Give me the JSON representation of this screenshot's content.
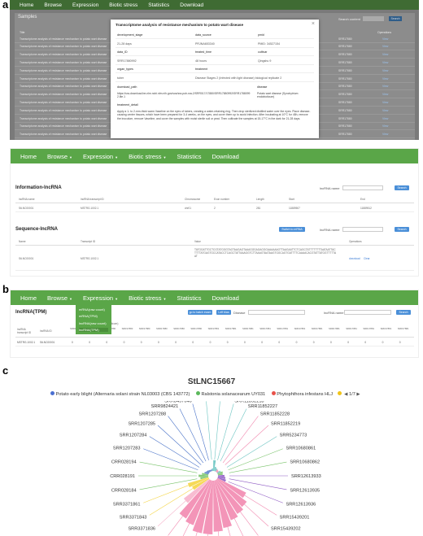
{
  "labels": {
    "a": "a",
    "b": "b",
    "c": "c"
  },
  "nav": {
    "home": "Home",
    "browse": "Browse",
    "expression": "Expression",
    "biotic": "Biotic stress",
    "statistics": "Statistics",
    "download": "Download"
  },
  "panelA": {
    "section": "Samples",
    "search_label": "Search content",
    "search_btn": "Search",
    "col_title": "Title",
    "col_operation": "Operations",
    "modal": {
      "title": "Transcriptome analysis of resistance mechanism to potato wart disease",
      "close": "×",
      "rows": [
        [
          "development_stage",
          "data_source",
          "pmid"
        ],
        [
          "21-28 days",
          "PRJNA653340",
          "PMID: 34527154"
        ],
        [
          "data_ID",
          "treated_time",
          "cultivar"
        ],
        [
          "SRR17880992",
          "48 hours",
          "Qingshu 9"
        ],
        [
          "organ_types",
          "treatment",
          ""
        ],
        [
          "tuber",
          "Disease Stages 2 (Infected with light disease) biological replicate 2",
          ""
        ]
      ],
      "download_label": "download_path",
      "disease_label": "disease",
      "download_val": "https://sra-download.be-nlm.ncbi.nlm.nih.gov/sos/sra-pub-sra-2/SRR017/17880/SRR17880992/SRR17880992.lite.1",
      "disease_val": "Potato wart disease (Synchytrium endobioticum)",
      "detail_label": "treatment_detail",
      "detail_val": "Apply a 1- to 2-mm-thick warm Vaseline on the eyes of tubers, creating a water-retaining ring. Then drop sterilized distilled water over the eyes. Place disease-causing center tissues, which have been prepared for 3-4 weeks, on the eyes, and cover them up to avoid infection. After incubating at 10°C for 48h, remove the inoculum, remove Vaseline, and cover the samples with moist sterile soil or peat. Then cultivate the samples at 15-17°C in the dark for 21-28 days."
    },
    "row_prefix": "Transcriptome analysis of resistance mechanism to potato wart disease",
    "sra_prefix": "SRR17880",
    "view": "View"
  },
  "panelA2": {
    "info_title": "Information-lncRNA",
    "name_label": "lncRNA name",
    "search": "Search",
    "headers": [
      "lncRNA name",
      "lncRNA transcript ID",
      "Chromosome",
      "Exon number",
      "Length",
      "Start",
      "End"
    ],
    "values": [
      "StLNC00001",
      "MSTRG.1002.1",
      "chr01",
      "2",
      "281",
      "11889507",
      "11889512"
    ],
    "seq_title": "Sequence-lncRNA",
    "switch": "Switch to mRNA",
    "seq_headers": [
      "Name",
      "Transcript ID",
      "Value",
      "Operations"
    ],
    "seq_values": [
      "StLNC00001",
      "MSTRG.1002.1",
      "TATGGATTGCTCGTATGGGTAGTAAGAGTAAAGGGAGAGGGAAAAAAGTTAAGAATTCTCAGCTATTTTTTTTAATAATTACTTTTATGAGTGCCATACCTCAGCTATTAAAGGTCTTAAAGTAATAAGTGGCAGTGATTTTCAAAACACGTATTATGGTTTTTAAT"
    ],
    "download": "download",
    "clear": "Clear"
  },
  "panelB": {
    "title": "lncRNA(TPM)",
    "btn1": "go to batch exam",
    "btn2": "Left bias",
    "disease": "Disease",
    "lncname": "lncRNA name",
    "search": "Search",
    "menu": [
      "mRNA(raw count)",
      "mRNA(TPM)",
      "lncRNA(raw count)",
      "lncRNA(TPM)"
    ],
    "col0": "lncRNA transcript ID",
    "col1": "lncRNA ID",
    "group": "disease (Synchytrium endobioticum)",
    "cols": [
      "SRR17880",
      "SRR17880",
      "SRR17880",
      "SRR17880",
      "SRR17880",
      "SRR17880",
      "SRR17880",
      "SRR17880",
      "SRR17881",
      "SRR17881",
      "SRR17881",
      "SRR17881",
      "SRR17881",
      "SRR17881",
      "SRR17881",
      "SRR17881",
      "SRR17881",
      "SRR17881",
      "SRR17881",
      "SRR17881"
    ],
    "row": [
      "MSTRG.1002.1",
      "StLNC00001",
      "0",
      "0",
      "0",
      "0",
      "0",
      "0",
      "0",
      "0",
      "0",
      "0",
      "0",
      "0",
      "0",
      "0",
      "0",
      "0",
      "0",
      "0",
      "0",
      "0"
    ]
  },
  "panelC": {
    "title": "StLNC15667",
    "legend": [
      {
        "name": "Potato early blight (Alternaria solani strain NL03003 (CBS 143772)",
        "color": "#4a6fd1"
      },
      {
        "name": "Ralstonia solanacearum UY031",
        "color": "#5cb85c"
      },
      {
        "name": "Phytophthora infestans HLJ",
        "color": "#e8524a"
      }
    ],
    "legend_dot4": "#f0c419",
    "page": "1/7",
    "colors": {
      "pink": "#f28ab0",
      "lpink": "#f7b5cc",
      "yellow": "#f5d546",
      "green": "#79c36a",
      "teal": "#6cc5c2",
      "blue": "#4a73c8",
      "purple": "#8f5bc4",
      "red": "#e8524a",
      "orange": "#f0944a",
      "grey": "#9a9a9a"
    }
  },
  "chart_data": {
    "type": "polar-bar",
    "title": "StLNC15667",
    "categories": [
      "SRR15524511",
      "SRR11852218",
      "SRR11852227",
      "SRR11852228",
      "SRR11852219",
      "SRR5234773",
      "SRR10680861",
      "SRR10680862",
      "SRR12613933",
      "SRR12613935",
      "SRR12613936",
      "SRR15439201",
      "SRR15439202",
      "SRR15439203",
      "SRR15439204",
      "SRR15439208",
      "SRR15439199",
      "SRR15439205",
      "SRR15439206",
      "SRR15439207",
      "SRR3371855",
      "SRR3371836",
      "SRR3371843",
      "SRR3371861",
      "CRR028184",
      "CRR028191",
      "CRR028194",
      "SRR1207283",
      "SRR1207284",
      "SRR1207285",
      "SRR1207288",
      "SRR9824421",
      "SRR8457040",
      "SRR9599221"
    ],
    "values": [
      20,
      8,
      6,
      5,
      4,
      7,
      10,
      9,
      12,
      14,
      16,
      60,
      70,
      75,
      80,
      90,
      95,
      100,
      100,
      90,
      85,
      60,
      35,
      40,
      15,
      18,
      12,
      8,
      6,
      5,
      4,
      3,
      3,
      5
    ],
    "colors": [
      "teal",
      "teal",
      "teal",
      "pink",
      "pink",
      "teal",
      "green",
      "green",
      "purple",
      "purple",
      "purple",
      "pink",
      "pink",
      "pink",
      "pink",
      "pink",
      "pink",
      "pink",
      "pink",
      "pink",
      "pink",
      "lpink",
      "yellow",
      "yellow",
      "green",
      "green",
      "green",
      "blue",
      "blue",
      "blue",
      "blue",
      "blue",
      "blue",
      "teal"
    ]
  }
}
